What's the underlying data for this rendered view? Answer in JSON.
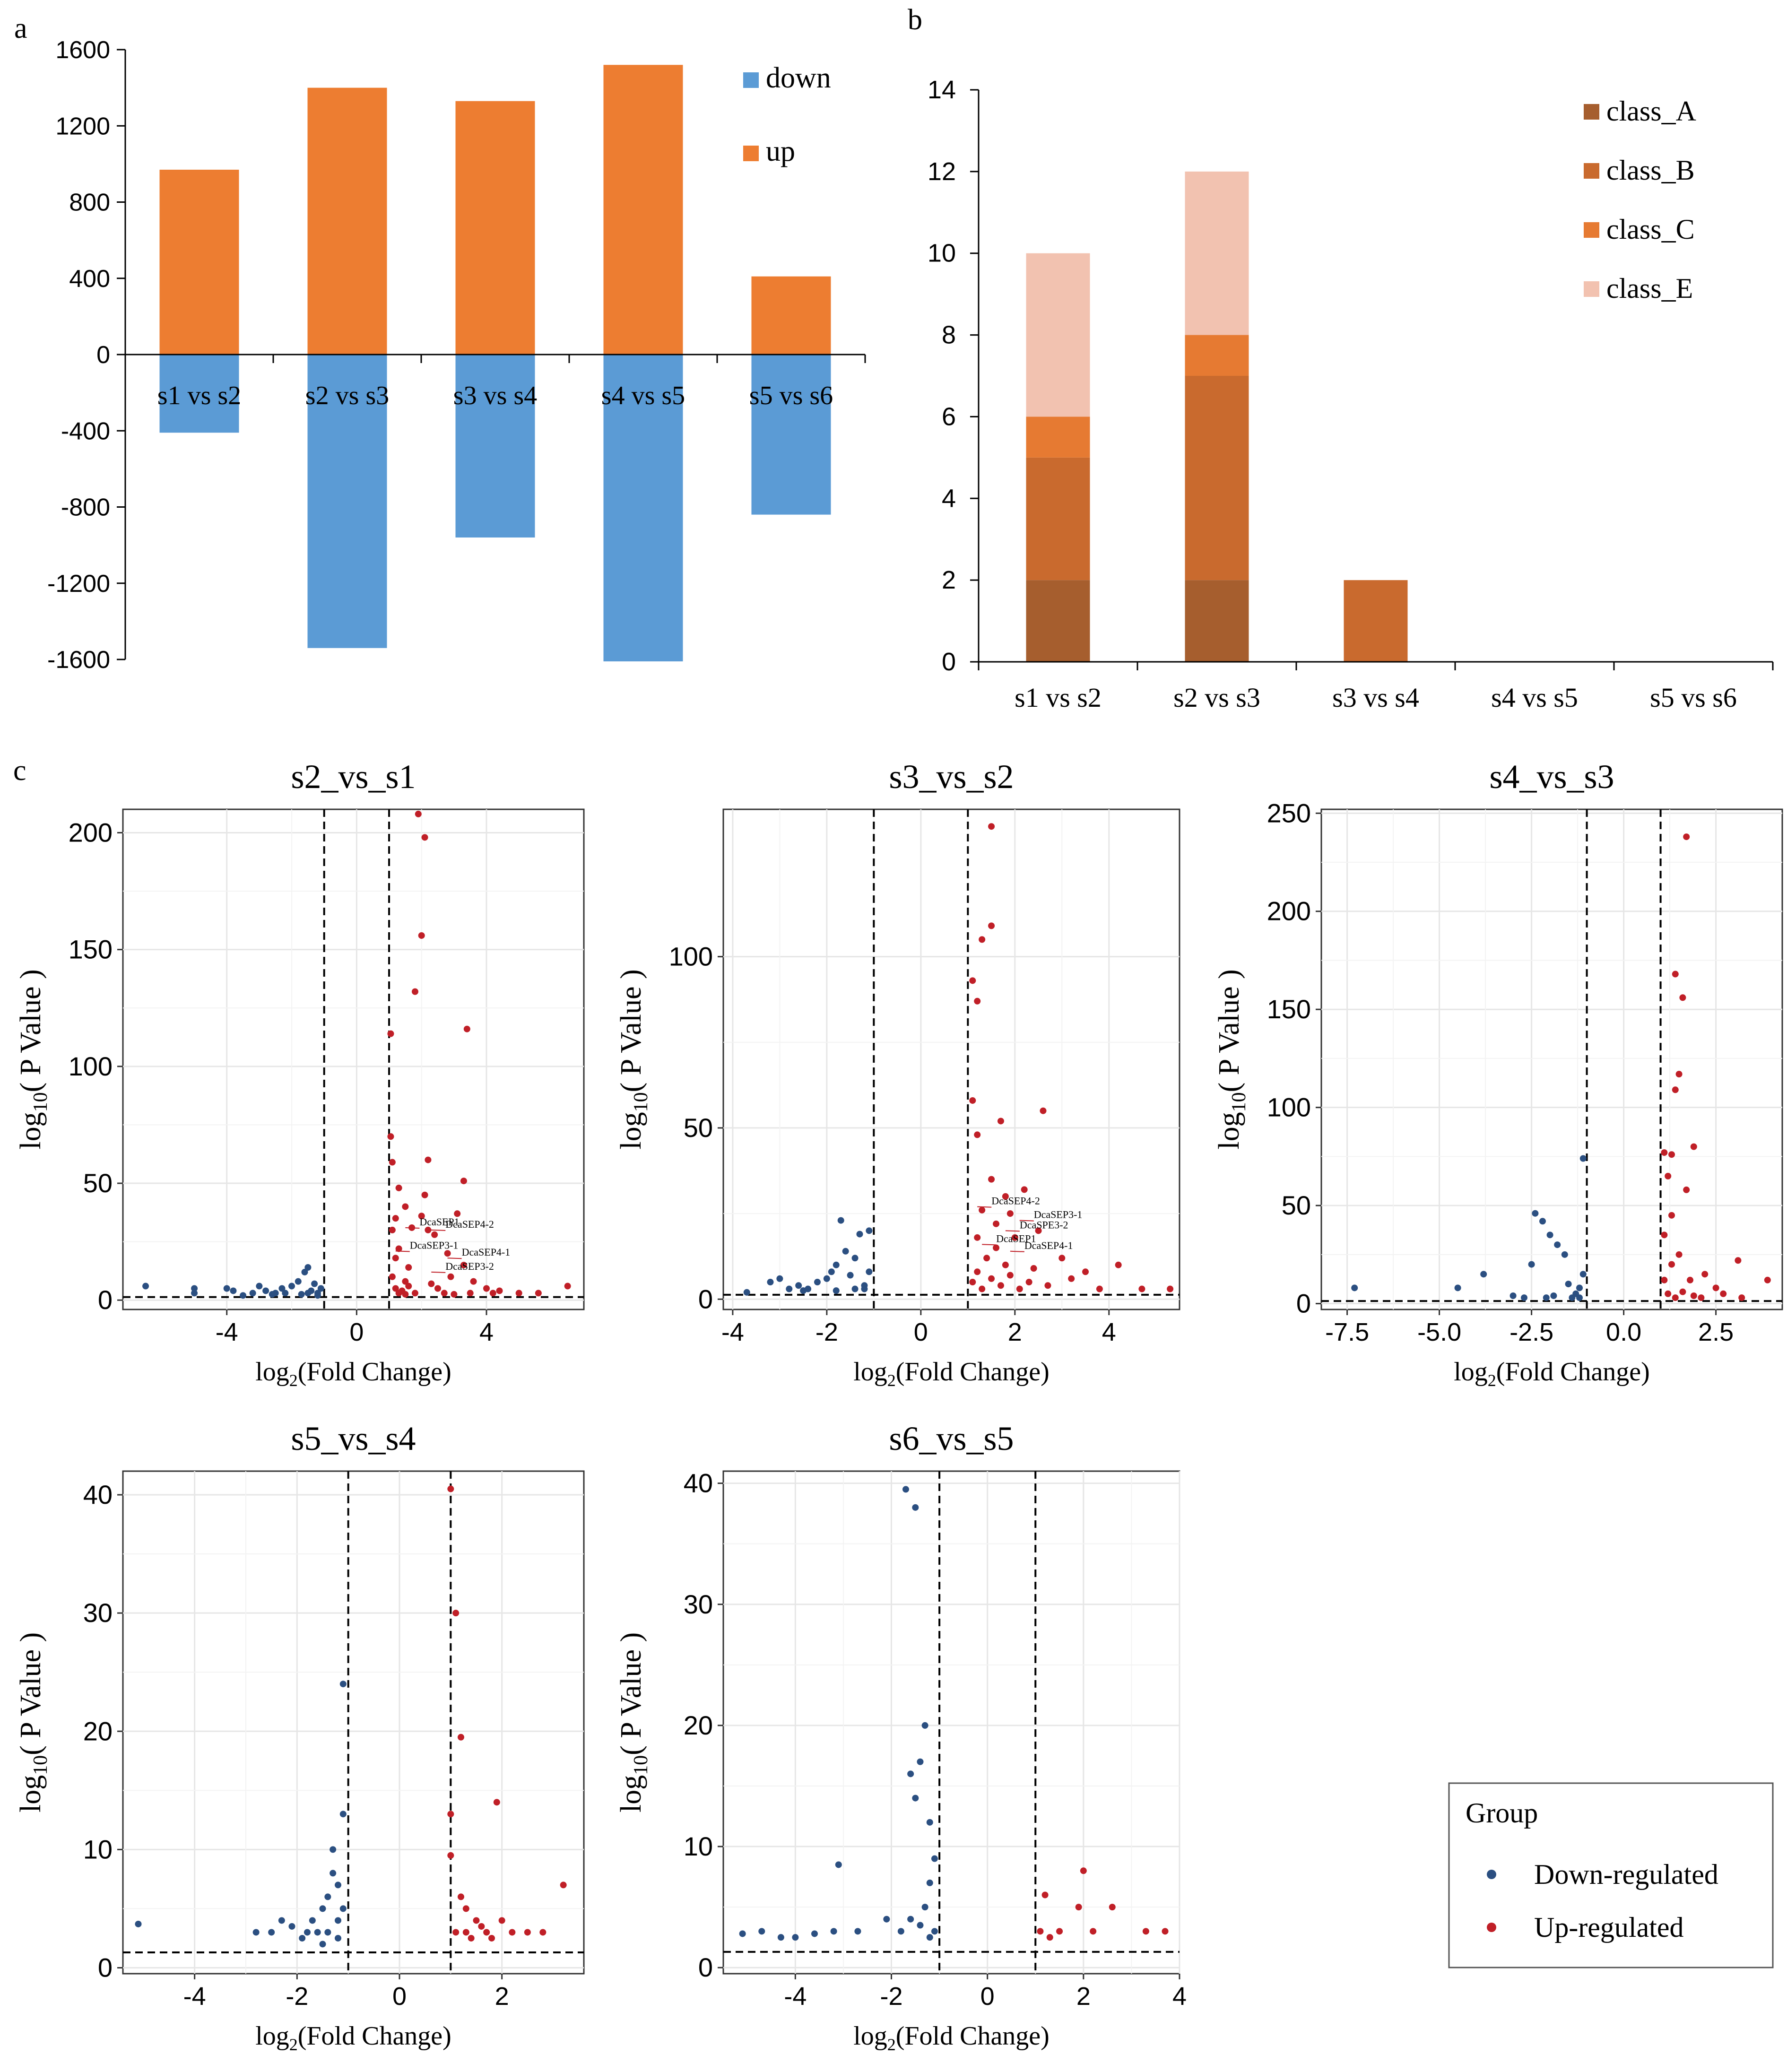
{
  "panel_labels": {
    "a": "a",
    "b": "b",
    "c": "c"
  },
  "legend_c": {
    "title": "Group",
    "down": "Down-regulated",
    "up": "Up-regulated"
  },
  "chart_data": [
    {
      "panel": "a",
      "type": "bar",
      "categories": [
        "s1 vs s2",
        "s2 vs s3",
        "s3 vs s4",
        "s4 vs s5",
        "s5 vs s6"
      ],
      "series": [
        {
          "name": "down",
          "values": [
            -410,
            -1540,
            -960,
            -1610,
            -840
          ],
          "color": "#5b9bd5"
        },
        {
          "name": "up",
          "values": [
            970,
            1400,
            1330,
            1520,
            410
          ],
          "color": "#ed7d31"
        }
      ],
      "ylim": [
        -1600,
        1600
      ],
      "yticks": [
        "1600",
        "1200",
        "800",
        "400",
        "0",
        "-400",
        "-800",
        "-1200",
        "-1600"
      ],
      "legend_position": "top-right"
    },
    {
      "panel": "b",
      "type": "bar",
      "stacked": true,
      "categories": [
        "s1 vs s2",
        "s2 vs s3",
        "s3 vs s4",
        "s4 vs s5",
        "s5 vs s6"
      ],
      "series": [
        {
          "name": "class_A",
          "values": [
            2,
            2,
            0,
            0,
            0
          ],
          "color": "#a65e2e"
        },
        {
          "name": "class_B",
          "values": [
            3,
            5,
            2,
            0,
            0
          ],
          "color": "#c96a2e"
        },
        {
          "name": "class_C",
          "values": [
            1,
            1,
            0,
            0,
            0
          ],
          "color": "#e67a32"
        },
        {
          "name": "class_E",
          "values": [
            4,
            4,
            0,
            0,
            0
          ],
          "color": "#f2c2b0"
        }
      ],
      "ylim": [
        0,
        14
      ],
      "yticks": [
        "0",
        "2",
        "4",
        "6",
        "8",
        "10",
        "12",
        "14"
      ],
      "legend_position": "top-right"
    },
    {
      "panel": "c",
      "type": "scatter",
      "title": "s2_vs_s1",
      "xlabel": "log2(Fold Change)",
      "ylabel": "log10( P Value )",
      "xlim": [
        -7.2,
        7
      ],
      "ylim": [
        -4,
        210
      ],
      "xticks": [
        -4,
        0,
        4
      ],
      "yticks": [
        0,
        50,
        100,
        150,
        200
      ],
      "thresholds": {
        "x": [
          -1,
          1
        ],
        "y": 1.3
      },
      "annotations": [
        {
          "label": "DcaSEP1",
          "x": 1.5,
          "y": 31
        },
        {
          "label": "DcaSEP4-2",
          "x": 2.3,
          "y": 30
        },
        {
          "label": "DcaSEP3-1",
          "x": 1.2,
          "y": 21
        },
        {
          "label": "DcaSEP4-1",
          "x": 2.8,
          "y": 18
        },
        {
          "label": "DcaSEP3-2",
          "x": 2.3,
          "y": 12
        }
      ],
      "down": [
        [
          -6.5,
          6
        ],
        [
          -5,
          3
        ],
        [
          -5,
          5
        ],
        [
          -4,
          5
        ],
        [
          -3.8,
          4
        ],
        [
          -3.5,
          2
        ],
        [
          -3.2,
          3
        ],
        [
          -3,
          6
        ],
        [
          -2.8,
          4
        ],
        [
          -2.5,
          3
        ],
        [
          -2.3,
          5
        ],
        [
          -2,
          6
        ],
        [
          -1.8,
          8
        ],
        [
          -1.6,
          12
        ],
        [
          -1.5,
          14
        ],
        [
          -1.4,
          4
        ],
        [
          -1.3,
          7
        ],
        [
          -1.2,
          3
        ],
        [
          -1.1,
          5
        ],
        [
          -2.2,
          3
        ],
        [
          -1.7,
          2.5
        ],
        [
          -2.6,
          2.5
        ],
        [
          -1.5,
          3
        ],
        [
          -1.2,
          2
        ]
      ],
      "up": [
        [
          1.1,
          10
        ],
        [
          1.2,
          18
        ],
        [
          1.3,
          22
        ],
        [
          1.5,
          8
        ],
        [
          1.7,
          31
        ],
        [
          2.0,
          36
        ],
        [
          2.2,
          30
        ],
        [
          2.4,
          28
        ],
        [
          2.8,
          20
        ],
        [
          3.1,
          37
        ],
        [
          3.3,
          15
        ],
        [
          3.6,
          8
        ],
        [
          4.0,
          5
        ],
        [
          4.4,
          4
        ],
        [
          5.0,
          3
        ],
        [
          5.6,
          3
        ],
        [
          6.5,
          6
        ],
        [
          1.05,
          70
        ],
        [
          1.05,
          114
        ],
        [
          1.1,
          59
        ],
        [
          1.3,
          48
        ],
        [
          1.5,
          40
        ],
        [
          1.8,
          132
        ],
        [
          2.0,
          156
        ],
        [
          2.1,
          198
        ],
        [
          1.9,
          208
        ],
        [
          2.2,
          60
        ],
        [
          3.3,
          51
        ],
        [
          3.4,
          116
        ],
        [
          2.1,
          45
        ],
        [
          1.2,
          5
        ],
        [
          1.4,
          4
        ],
        [
          1.6,
          6
        ],
        [
          1.8,
          3
        ],
        [
          2.5,
          5
        ],
        [
          2.7,
          3
        ],
        [
          3.0,
          2.5
        ],
        [
          1.3,
          3
        ],
        [
          1.5,
          2.5
        ],
        [
          2.3,
          7
        ],
        [
          2.9,
          10
        ],
        [
          3.5,
          3
        ],
        [
          4.2,
          3
        ],
        [
          1.1,
          30
        ],
        [
          1.6,
          14
        ],
        [
          1.2,
          35
        ]
      ]
    },
    {
      "panel": "c",
      "type": "scatter",
      "title": "s3_vs_s2",
      "xlabel": "log2(Fold Change)",
      "ylabel": "log10( P Value )",
      "xlim": [
        -4.2,
        5.5
      ],
      "ylim": [
        -3,
        143
      ],
      "xticks": [
        -4,
        -2,
        0,
        2,
        4
      ],
      "yticks": [
        0,
        50,
        100
      ],
      "thresholds": {
        "x": [
          -1,
          1
        ],
        "y": 1.3
      },
      "annotations": [
        {
          "label": "DcaSEP4-2",
          "x": 1.2,
          "y": 27
        },
        {
          "label": "DcaSEP3-1",
          "x": 2.1,
          "y": 23
        },
        {
          "label": "DcaSPE3-2",
          "x": 1.8,
          "y": 20
        },
        {
          "label": "DcaSEP1",
          "x": 1.3,
          "y": 16
        },
        {
          "label": "DcaSEP4-1",
          "x": 1.9,
          "y": 14
        }
      ],
      "down": [
        [
          -3.7,
          2
        ],
        [
          -3.2,
          5
        ],
        [
          -3,
          6
        ],
        [
          -2.8,
          3
        ],
        [
          -2.6,
          4
        ],
        [
          -2.4,
          3
        ],
        [
          -2.2,
          5
        ],
        [
          -2,
          6
        ],
        [
          -1.9,
          8
        ],
        [
          -1.8,
          10
        ],
        [
          -1.7,
          23
        ],
        [
          -1.6,
          14
        ],
        [
          -1.5,
          7
        ],
        [
          -1.4,
          12
        ],
        [
          -1.3,
          19
        ],
        [
          -1.2,
          4
        ],
        [
          -1.1,
          8
        ],
        [
          -1.1,
          20
        ],
        [
          -1.2,
          3
        ],
        [
          -1.8,
          2.5
        ],
        [
          -2.5,
          2.5
        ],
        [
          -1.4,
          3
        ]
      ],
      "up": [
        [
          1.1,
          93
        ],
        [
          1.2,
          87
        ],
        [
          1.3,
          105
        ],
        [
          1.5,
          109
        ],
        [
          1.5,
          138
        ],
        [
          1.7,
          52
        ],
        [
          2.6,
          55
        ],
        [
          1.1,
          58
        ],
        [
          1.2,
          48
        ],
        [
          1.5,
          35
        ],
        [
          1.8,
          30
        ],
        [
          2.2,
          32
        ],
        [
          1.3,
          26
        ],
        [
          1.6,
          22
        ],
        [
          2.0,
          18
        ],
        [
          2.5,
          20
        ],
        [
          3.0,
          12
        ],
        [
          3.5,
          8
        ],
        [
          4.2,
          10
        ],
        [
          4.7,
          3
        ],
        [
          5.3,
          3
        ],
        [
          1.1,
          5
        ],
        [
          1.2,
          8
        ],
        [
          1.3,
          3
        ],
        [
          1.4,
          12
        ],
        [
          1.5,
          6
        ],
        [
          1.7,
          4
        ],
        [
          1.9,
          7
        ],
        [
          2.1,
          3
        ],
        [
          2.3,
          5
        ],
        [
          2.7,
          4
        ],
        [
          3.2,
          6
        ],
        [
          3.8,
          3
        ],
        [
          1.6,
          15
        ],
        [
          1.8,
          10
        ],
        [
          2.4,
          9
        ],
        [
          1.2,
          18
        ],
        [
          1.9,
          25
        ]
      ]
    },
    {
      "panel": "c",
      "type": "scatter",
      "title": "s4_vs_s3",
      "xlabel": "log2(Fold Change)",
      "ylabel": "log10( P Value )",
      "xlim": [
        -8.2,
        4.3
      ],
      "ylim": [
        -3,
        252
      ],
      "xticks": [
        -7.5,
        -5.0,
        -2.5,
        0.0,
        2.5
      ],
      "yticks": [
        0,
        50,
        100,
        150,
        200,
        250
      ],
      "thresholds": {
        "x": [
          -1,
          1
        ],
        "y": 1.3
      },
      "down": [
        [
          -7.3,
          8
        ],
        [
          -4.5,
          8
        ],
        [
          -3.8,
          15
        ],
        [
          -3,
          4
        ],
        [
          -2.7,
          3
        ],
        [
          -2.4,
          46
        ],
        [
          -2.2,
          42
        ],
        [
          -2,
          35
        ],
        [
          -1.8,
          30
        ],
        [
          -1.6,
          25
        ],
        [
          -1.5,
          10
        ],
        [
          -1.3,
          5
        ],
        [
          -1.2,
          8
        ],
        [
          -1.1,
          74
        ],
        [
          -1.1,
          15
        ],
        [
          -1.2,
          3
        ],
        [
          -1.9,
          4
        ],
        [
          -2.5,
          20
        ],
        [
          -1.4,
          3
        ],
        [
          -2.1,
          3
        ]
      ],
      "up": [
        [
          1.1,
          77
        ],
        [
          1.3,
          76
        ],
        [
          1.4,
          168
        ],
        [
          1.6,
          156
        ],
        [
          1.7,
          238
        ],
        [
          1.9,
          80
        ],
        [
          1.5,
          117
        ],
        [
          1.4,
          109
        ],
        [
          1.2,
          65
        ],
        [
          1.7,
          58
        ],
        [
          1.3,
          45
        ],
        [
          1.1,
          35
        ],
        [
          1.5,
          25
        ],
        [
          1.8,
          12
        ],
        [
          2.2,
          15
        ],
        [
          2.5,
          8
        ],
        [
          3.1,
          22
        ],
        [
          3.9,
          12
        ],
        [
          1.2,
          5
        ],
        [
          1.4,
          3
        ],
        [
          1.6,
          6
        ],
        [
          1.9,
          4
        ],
        [
          2.1,
          3
        ],
        [
          2.7,
          5
        ],
        [
          3.2,
          3
        ],
        [
          1.3,
          20
        ],
        [
          1.1,
          12
        ]
      ]
    },
    {
      "panel": "c",
      "type": "scatter",
      "title": "s5_vs_s4",
      "xlabel": "log2(Fold Change)",
      "ylabel": "log10( P Value )",
      "xlim": [
        -5.4,
        3.6
      ],
      "ylim": [
        -0.5,
        42
      ],
      "xticks": [
        -4,
        -2,
        0,
        2
      ],
      "yticks": [
        0,
        10,
        20,
        30,
        40
      ],
      "thresholds": {
        "x": [
          -1,
          1
        ],
        "y": 1.3
      },
      "down": [
        [
          -5.1,
          3.7
        ],
        [
          -2.8,
          3
        ],
        [
          -2.3,
          4
        ],
        [
          -2.1,
          3.5
        ],
        [
          -1.9,
          2.5
        ],
        [
          -1.7,
          4
        ],
        [
          -1.5,
          5
        ],
        [
          -1.4,
          6
        ],
        [
          -1.3,
          8
        ],
        [
          -1.3,
          10
        ],
        [
          -1.2,
          4
        ],
        [
          -1.1,
          24
        ],
        [
          -1.1,
          13
        ],
        [
          -1.2,
          7
        ],
        [
          -1.4,
          3
        ],
        [
          -1.6,
          3
        ],
        [
          -1.1,
          5
        ],
        [
          -1.2,
          2.5
        ],
        [
          -1.5,
          2
        ],
        [
          -1.8,
          3
        ],
        [
          -2.5,
          3
        ]
      ],
      "up": [
        [
          1.0,
          40.5
        ],
        [
          1.1,
          30
        ],
        [
          1.2,
          19.5
        ],
        [
          1.0,
          13
        ],
        [
          1.0,
          9.5
        ],
        [
          1.2,
          6
        ],
        [
          1.3,
          5
        ],
        [
          1.5,
          4
        ],
        [
          1.7,
          3
        ],
        [
          1.9,
          14
        ],
        [
          1.1,
          3
        ],
        [
          1.4,
          2.5
        ],
        [
          1.6,
          3.5
        ],
        [
          2.0,
          4
        ],
        [
          2.2,
          3
        ],
        [
          2.8,
          3
        ],
        [
          3.2,
          7
        ],
        [
          1.3,
          3
        ],
        [
          1.8,
          2.5
        ],
        [
          2.5,
          3
        ]
      ]
    },
    {
      "panel": "c",
      "type": "scatter",
      "title": "s6_vs_s5",
      "xlabel": "log2(Fold Change)",
      "ylabel": "log10( P Value )",
      "xlim": [
        -5.5,
        4
      ],
      "ylim": [
        -0.5,
        41
      ],
      "xticks": [
        -4,
        -2,
        0,
        2,
        4
      ],
      "yticks": [
        0,
        10,
        20,
        30,
        40
      ],
      "thresholds": {
        "x": [
          -1,
          1
        ],
        "y": 1.3
      },
      "down": [
        [
          -5.1,
          2.8
        ],
        [
          -4.7,
          3
        ],
        [
          -4.3,
          2.5
        ],
        [
          -4,
          2.5
        ],
        [
          -3.6,
          2.8
        ],
        [
          -3.2,
          3
        ],
        [
          -3.1,
          8.5
        ],
        [
          -2.7,
          3
        ],
        [
          -2.1,
          4
        ],
        [
          -1.7,
          39.5
        ],
        [
          -1.5,
          38
        ],
        [
          -1.3,
          20
        ],
        [
          -1.4,
          17
        ],
        [
          -1.6,
          16
        ],
        [
          -1.5,
          14
        ],
        [
          -1.2,
          12
        ],
        [
          -1.1,
          9
        ],
        [
          -1.2,
          7
        ],
        [
          -1.3,
          5
        ],
        [
          -1.4,
          3.5
        ],
        [
          -1.1,
          3
        ],
        [
          -1.6,
          4
        ],
        [
          -1.8,
          3
        ],
        [
          -1.2,
          2.5
        ]
      ],
      "up": [
        [
          1.1,
          3
        ],
        [
          1.2,
          6
        ],
        [
          1.5,
          3
        ],
        [
          1.9,
          5
        ],
        [
          2.0,
          8
        ],
        [
          2.2,
          3
        ],
        [
          2.6,
          5
        ],
        [
          3.3,
          3
        ],
        [
          3.7,
          3
        ],
        [
          1.3,
          2.5
        ]
      ]
    }
  ]
}
